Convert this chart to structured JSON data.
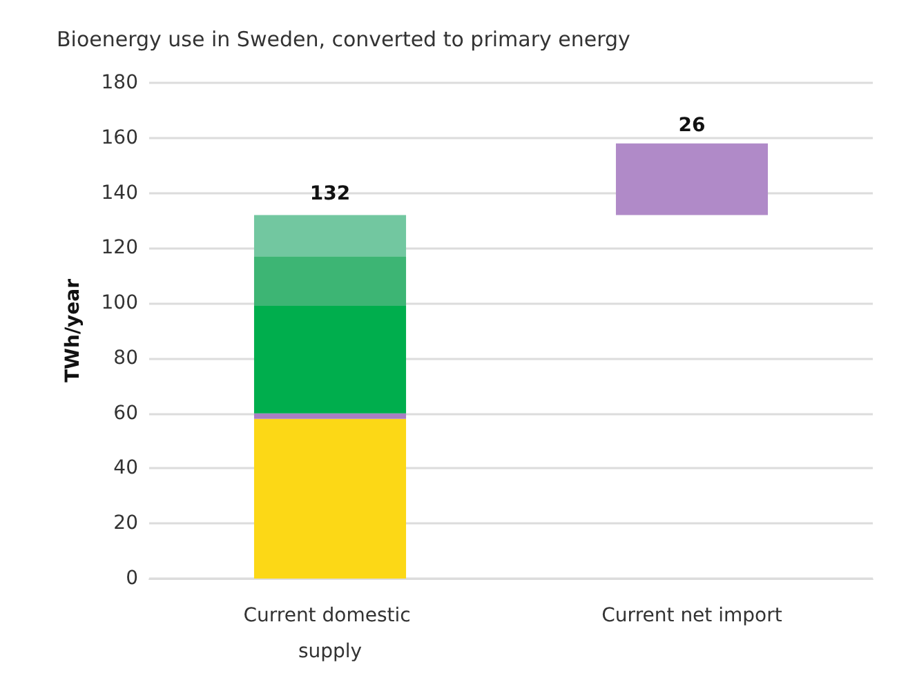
{
  "chart_data": {
    "type": "bar",
    "stacked": true,
    "title": "Bioenergy use in Sweden, converted to primary energy",
    "ylabel": "TWh/year",
    "categories": [
      "Current domestic supply",
      "Current net import"
    ],
    "series": [
      {
        "color": "#fcd816",
        "values": [
          58,
          null
        ]
      },
      {
        "color": "#a87fc4",
        "values": [
          2,
          null
        ]
      },
      {
        "color": "#00ae4d",
        "values": [
          39,
          null
        ]
      },
      {
        "color": "#3db574",
        "values": [
          18,
          null
        ]
      },
      {
        "color": "#72c7a0",
        "values": [
          15,
          null
        ]
      },
      {
        "color": "#b08ac8",
        "values": [
          null,
          26
        ],
        "base": [
          null,
          132
        ],
        "value_labels": [
          null,
          "26"
        ]
      }
    ],
    "totals": [
      "132",
      null
    ],
    "ylim": [
      0,
      180
    ],
    "yticks": [
      0,
      20,
      40,
      60,
      80,
      100,
      120,
      140,
      160,
      180
    ],
    "grid": "y"
  }
}
